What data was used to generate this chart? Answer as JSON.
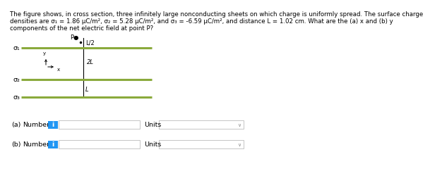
{
  "line1": "The figure shows, in cross section, three infinitely large nonconducting sheets on which charge is uniformly spread. The surface charge",
  "line2": "densities are σ₁ = 1.86 μC/m², σ₂ = 5.28 μC/m², and σ₃ = -6.59 μC/m², and distance L = 1.02 cm. What are the (a) x and (b) y",
  "line3": "components of the net electric field at point P?",
  "bg_color": "#ffffff",
  "sheet_color": "#8aaa3c",
  "text_fontsize": 6.2,
  "label_fontsize": 6.8,
  "small_fontsize": 6.0,
  "button_color": "#2196f3",
  "button_text_color": "#ffffff"
}
